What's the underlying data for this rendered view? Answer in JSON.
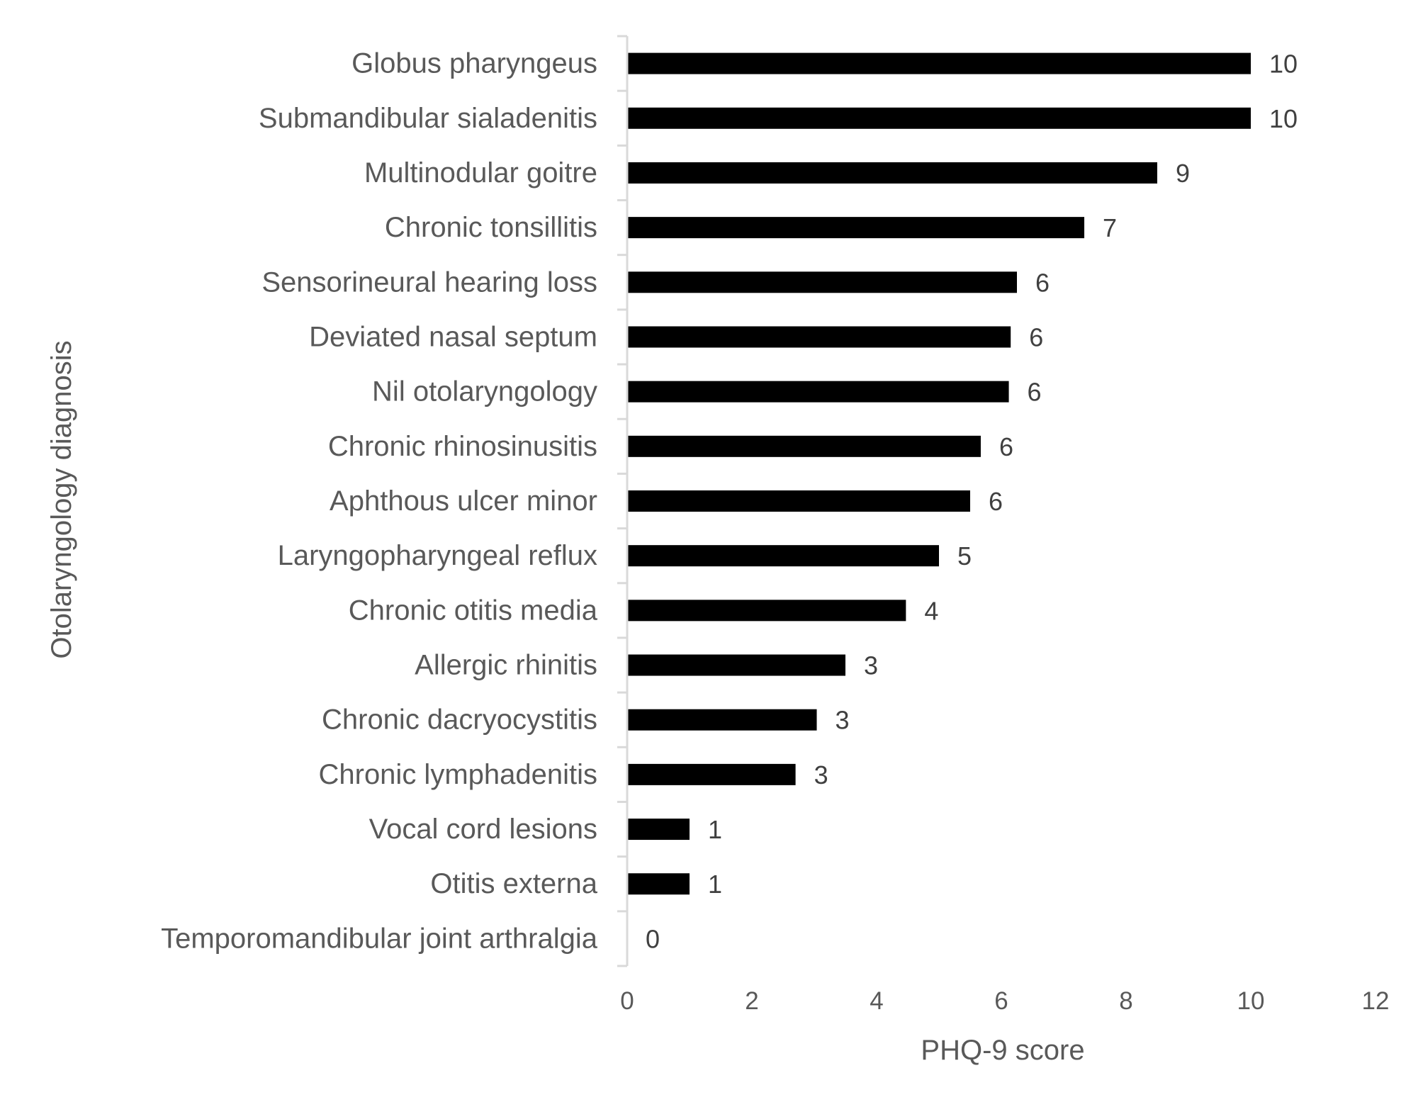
{
  "chart_data": {
    "type": "bar",
    "orientation": "horizontal",
    "categories": [
      "Globus pharyngeus",
      "Submandibular sialadenitis",
      "Multinodular goitre",
      "Chronic tonsillitis",
      "Sensorineural hearing loss",
      "Deviated nasal septum",
      "Nil otolaryngology",
      "Chronic rhinosinusitis",
      "Aphthous ulcer minor",
      "Laryngopharyngeal reflux",
      "Chronic otitis media",
      "Allergic rhinitis",
      "Chronic dacryocystitis",
      "Chronic lymphadenitis",
      "Vocal cord lesions",
      "Otitis externa",
      "Temporomandibular joint arthralgia"
    ],
    "values": [
      10,
      10,
      8.5,
      7.33,
      6.25,
      6.15,
      6.12,
      5.67,
      5.5,
      5.0,
      4.47,
      3.5,
      3.04,
      2.7,
      1.0,
      1.0,
      0
    ],
    "data_labels": [
      "10",
      "10",
      "9",
      "7",
      "6",
      "6",
      "6",
      "6",
      "6",
      "5",
      "4",
      "3",
      "3",
      "3",
      "1",
      "1",
      "0"
    ],
    "xlabel": "PHQ-9 score",
    "ylabel": "Otolaryngology diagnosis",
    "xlim": [
      0,
      12
    ],
    "xticks": [
      "0",
      "2",
      "4",
      "6",
      "8",
      "10",
      "12"
    ],
    "grid": false,
    "legend": "none",
    "bar_color": "#000000"
  }
}
